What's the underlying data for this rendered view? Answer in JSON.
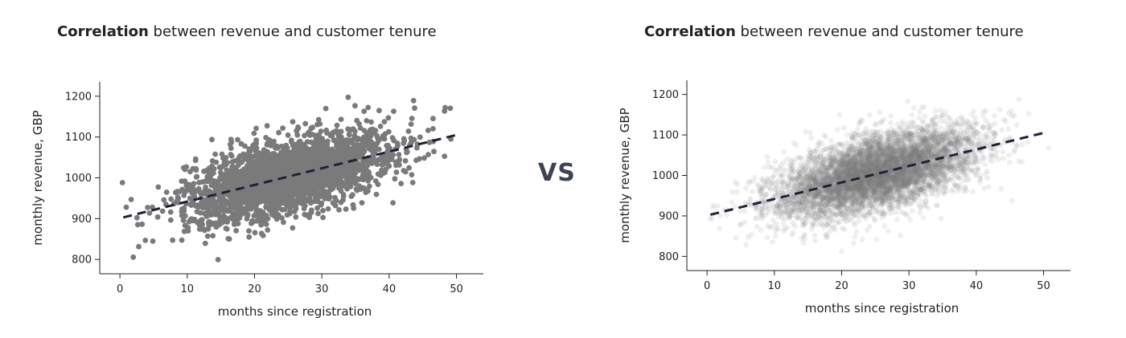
{
  "vs_label": "VS",
  "chart_data": [
    {
      "type": "scatter",
      "title_bold": "Correlation",
      "title_rest": " between revenue and customer tenure",
      "xlabel": "months since registration",
      "ylabel": "monthly revenue, GBP",
      "xlim": [
        -3,
        54
      ],
      "ylim": [
        765,
        1235
      ],
      "xticks": [
        0,
        10,
        20,
        30,
        40,
        50
      ],
      "yticks": [
        800,
        900,
        1000,
        1100,
        1200
      ],
      "grid": false,
      "legend": "none",
      "point_color": "#7a7a7a",
      "point_opacity": 1.0,
      "trend_line": {
        "x": [
          0.5,
          50
        ],
        "y": [
          903,
          1105
        ],
        "color": "#1f2234",
        "style": "dashed"
      },
      "distribution": {
        "n": 2500,
        "x_mean": 25,
        "x_sd": 7.5,
        "y_at_x0": 903,
        "slope": 4.08,
        "y_noise_sd": 45
      }
    },
    {
      "type": "scatter",
      "title_bold": "Correlation",
      "title_rest": " between revenue and customer tenure",
      "xlabel": "months since registration",
      "ylabel": "monthly revenue, GBP",
      "xlim": [
        -3,
        54
      ],
      "ylim": [
        765,
        1235
      ],
      "xticks": [
        0,
        10,
        20,
        30,
        40,
        50
      ],
      "yticks": [
        800,
        900,
        1000,
        1100,
        1200
      ],
      "grid": false,
      "legend": "none",
      "point_color": "#7a7a7a",
      "point_opacity": 0.12,
      "trend_line": {
        "x": [
          0.5,
          50
        ],
        "y": [
          903,
          1105
        ],
        "color": "#1f2234",
        "style": "dashed"
      },
      "distribution": {
        "n": 6000,
        "x_mean": 25,
        "x_sd": 7.5,
        "y_at_x0": 903,
        "slope": 4.08,
        "y_noise_sd": 45
      }
    }
  ]
}
